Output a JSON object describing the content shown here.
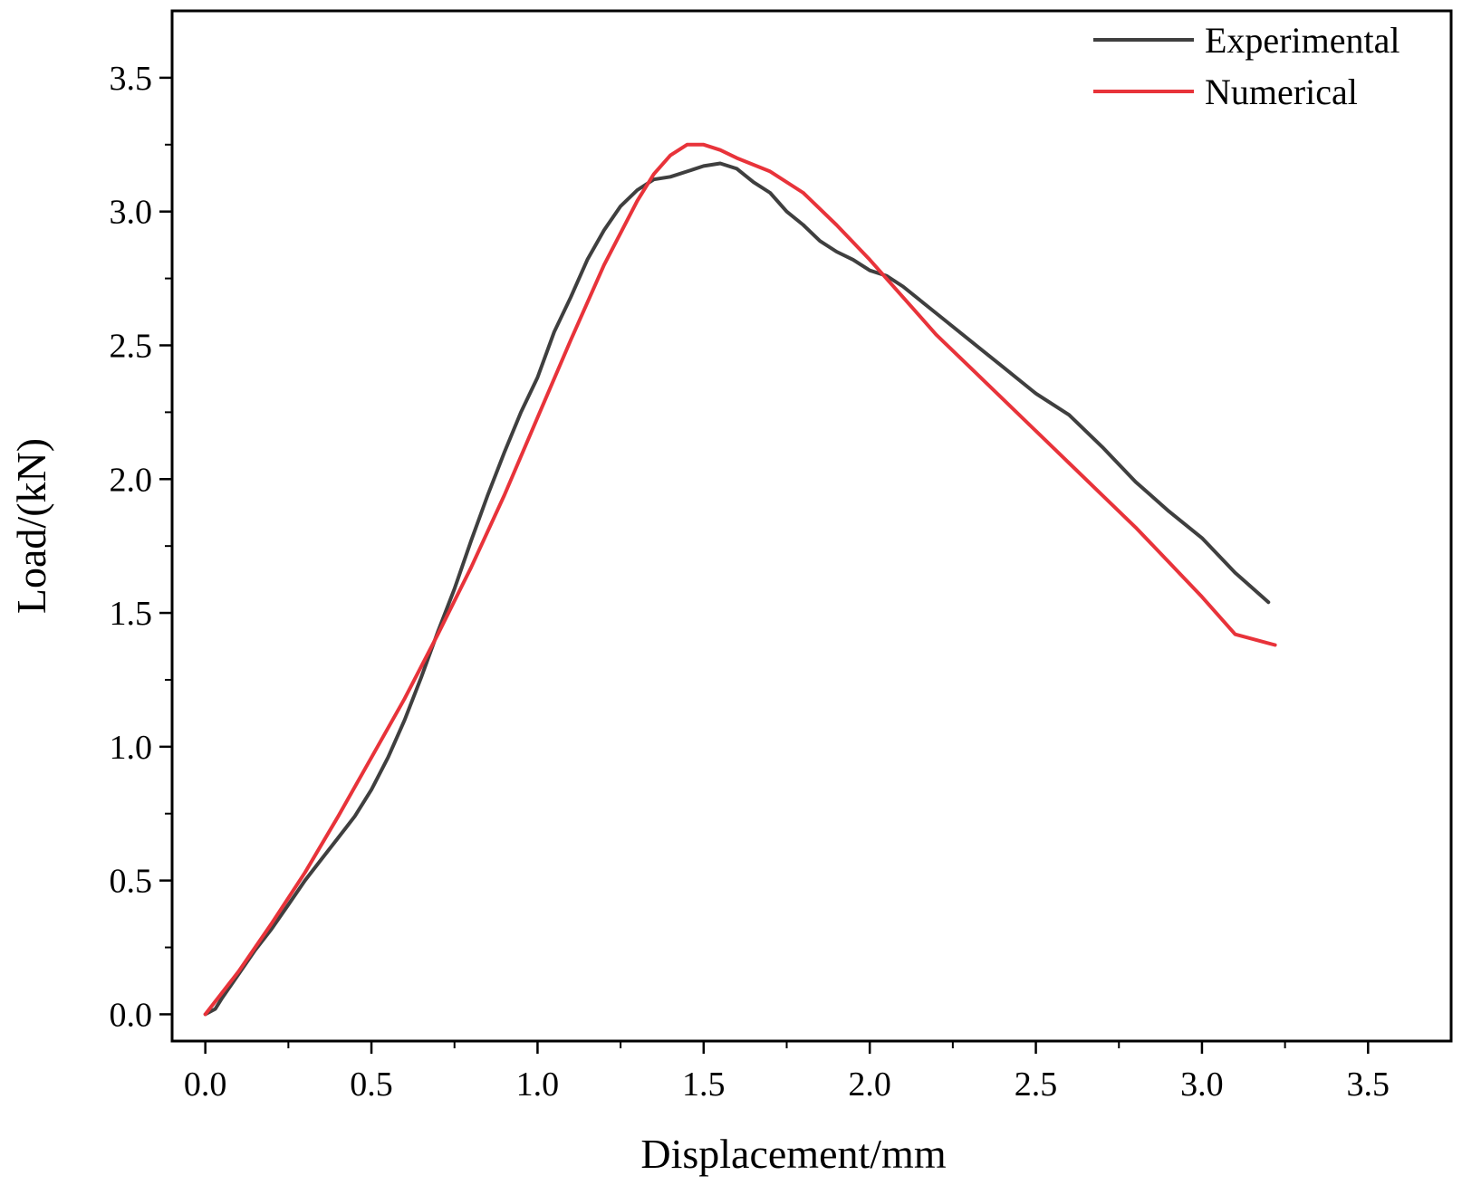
{
  "chart_data": {
    "type": "line",
    "title": "",
    "xlabel": "Displacement/mm",
    "ylabel": "Load/(kN)",
    "xlim": [
      -0.1,
      3.75
    ],
    "ylim": [
      -0.1,
      3.75
    ],
    "xticks": [
      0.0,
      0.5,
      1.0,
      1.5,
      2.0,
      2.5,
      3.0,
      3.5
    ],
    "xtick_labels": [
      "0.0",
      "0.5",
      "1.0",
      "1.5",
      "2.0",
      "2.5",
      "3.0",
      "3.5"
    ],
    "yticks": [
      0.0,
      0.5,
      1.0,
      1.5,
      2.0,
      2.5,
      3.0,
      3.5
    ],
    "ytick_labels": [
      "0.0",
      "0.5",
      "1.0",
      "1.5",
      "2.0",
      "2.5",
      "3.0",
      "3.5"
    ],
    "grid": false,
    "legend": "top-right",
    "series": [
      {
        "name": "Experimental",
        "color": "#3f3f3f",
        "x": [
          0.0,
          0.03,
          0.05,
          0.1,
          0.15,
          0.2,
          0.25,
          0.3,
          0.35,
          0.4,
          0.45,
          0.5,
          0.55,
          0.6,
          0.65,
          0.7,
          0.75,
          0.8,
          0.85,
          0.9,
          0.95,
          1.0,
          1.05,
          1.1,
          1.15,
          1.2,
          1.25,
          1.3,
          1.35,
          1.4,
          1.45,
          1.5,
          1.55,
          1.6,
          1.65,
          1.7,
          1.75,
          1.8,
          1.85,
          1.9,
          1.95,
          2.0,
          2.05,
          2.1,
          2.2,
          2.3,
          2.4,
          2.5,
          2.6,
          2.7,
          2.8,
          2.9,
          3.0,
          3.1,
          3.2
        ],
        "y": [
          0.0,
          0.02,
          0.06,
          0.15,
          0.24,
          0.32,
          0.41,
          0.5,
          0.58,
          0.66,
          0.74,
          0.84,
          0.96,
          1.1,
          1.26,
          1.43,
          1.59,
          1.77,
          1.94,
          2.1,
          2.25,
          2.38,
          2.55,
          2.68,
          2.82,
          2.93,
          3.02,
          3.08,
          3.12,
          3.13,
          3.15,
          3.17,
          3.18,
          3.16,
          3.11,
          3.07,
          3.0,
          2.95,
          2.89,
          2.85,
          2.82,
          2.78,
          2.76,
          2.72,
          2.62,
          2.52,
          2.42,
          2.32,
          2.24,
          2.12,
          1.99,
          1.88,
          1.78,
          1.65,
          1.54
        ]
      },
      {
        "name": "Numerical",
        "color": "#e8333a",
        "x": [
          0.0,
          0.1,
          0.2,
          0.3,
          0.4,
          0.5,
          0.6,
          0.7,
          0.8,
          0.9,
          1.0,
          1.1,
          1.2,
          1.3,
          1.35,
          1.4,
          1.45,
          1.5,
          1.55,
          1.6,
          1.7,
          1.8,
          1.9,
          2.0,
          2.1,
          2.2,
          2.3,
          2.4,
          2.5,
          2.6,
          2.7,
          2.8,
          2.9,
          3.0,
          3.1,
          3.22
        ],
        "y": [
          0.0,
          0.16,
          0.34,
          0.53,
          0.74,
          0.96,
          1.18,
          1.42,
          1.67,
          1.94,
          2.23,
          2.52,
          2.8,
          3.04,
          3.14,
          3.21,
          3.25,
          3.25,
          3.23,
          3.2,
          3.15,
          3.07,
          2.95,
          2.82,
          2.68,
          2.54,
          2.42,
          2.3,
          2.18,
          2.06,
          1.94,
          1.82,
          1.69,
          1.56,
          1.42,
          1.38
        ]
      }
    ]
  }
}
